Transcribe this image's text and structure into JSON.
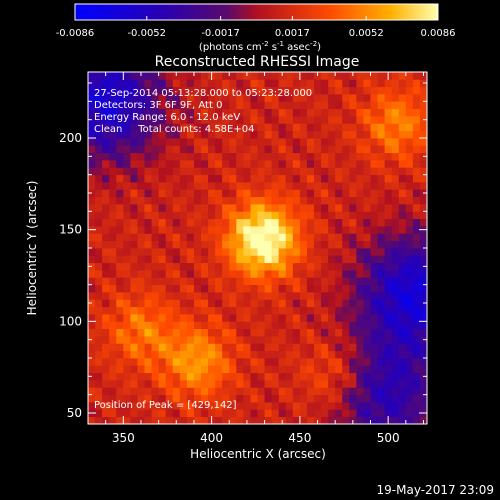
{
  "chart_data": {
    "type": "heatmap",
    "title": "Reconstructed RHESSI Image",
    "xlabel": "Heliocentric X (arcsec)",
    "ylabel": "Heliocentric Y (arcsec)",
    "xlim": [
      330,
      522
    ],
    "ylim": [
      44,
      236
    ],
    "xticks": [
      350,
      400,
      450,
      500
    ],
    "yticks": [
      50,
      100,
      150,
      200
    ],
    "colorbar": {
      "ticks": [
        "-0.0086",
        "-0.0052",
        "-0.0017",
        "0.0017",
        "0.0052",
        "0.0086"
      ],
      "range": [
        -0.0086,
        0.0086
      ],
      "unit_main": "(photons cm",
      "unit_exp1": "-2",
      "unit_mid": " s",
      "unit_exp2": "-1",
      "unit_mid2": " asec",
      "unit_exp3": "-2",
      "unit_end": ")"
    },
    "info": [
      "27-Sep-2014 05:13:28.000 to 05:23:28.000",
      "Detectors: 3F 6F 9F, Att 0",
      "Energy Range: 6.0 - 12.0 keV",
      "Clean     Total counts: 4.58E+04"
    ],
    "peak_label": "Position of Peak = [429,142]",
    "peak": [
      429,
      142
    ],
    "sources": [
      {
        "x": 429,
        "y": 145,
        "amplitude": 0.0086
      },
      {
        "x": 392,
        "y": 78,
        "amplitude": 0.0045
      },
      {
        "x": 360,
        "y": 95,
        "amplitude": 0.0034
      },
      {
        "x": 505,
        "y": 208,
        "amplitude": 0.0038
      },
      {
        "x": 470,
        "y": 70,
        "amplitude": 0.003
      }
    ],
    "low_regions": [
      {
        "x": 340,
        "y": 220,
        "amplitude": -0.0072
      },
      {
        "x": 515,
        "y": 115,
        "amplitude": -0.0075
      },
      {
        "x": 498,
        "y": 60,
        "amplitude": -0.0055
      }
    ]
  },
  "footer": {
    "date": "19-May-2017 23:09"
  }
}
